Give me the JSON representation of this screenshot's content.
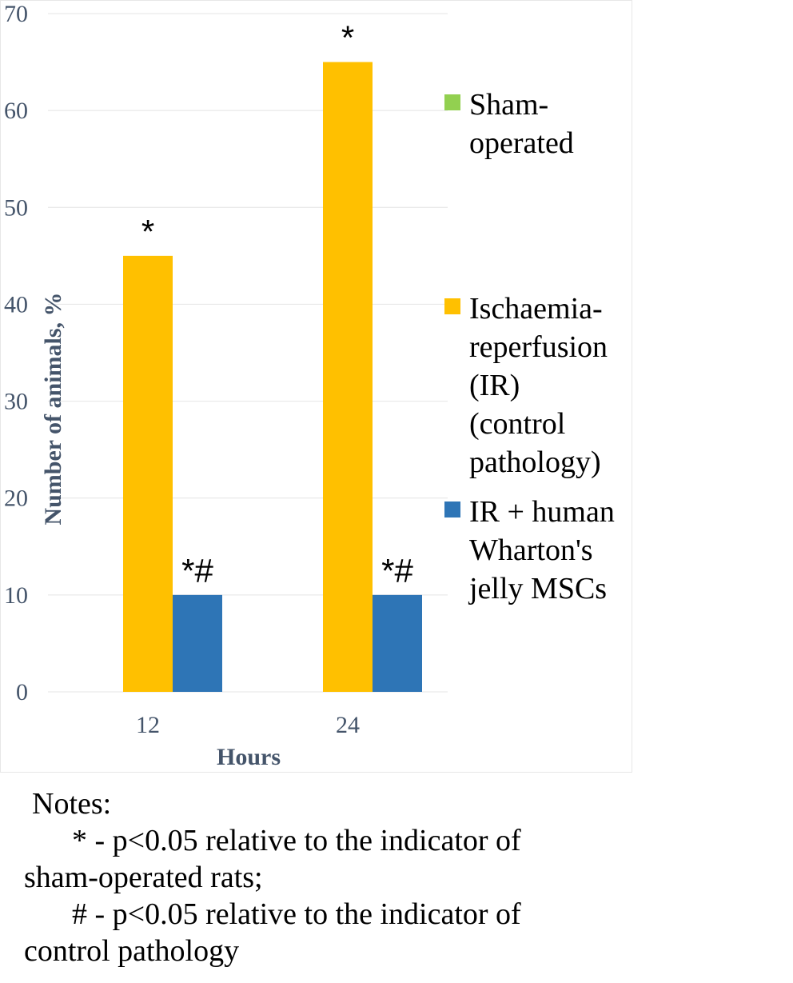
{
  "chart_data": {
    "type": "bar",
    "categories": [
      "12",
      "24"
    ],
    "series": [
      {
        "name": "Sham-operated",
        "values": [
          0,
          0
        ],
        "color": "#92d050"
      },
      {
        "name": "Ischaemia-reperfusion (IR) (control pathology)",
        "values": [
          45,
          65
        ],
        "color": "#ffc000"
      },
      {
        "name": "IR + human Wharton's jelly MSCs",
        "values": [
          10,
          10
        ],
        "color": "#2e75b6"
      }
    ],
    "title": "",
    "xlabel": "Hours",
    "ylabel": "Number of animals, %",
    "ylim": [
      0,
      70
    ],
    "yticks": [
      0,
      10,
      20,
      30,
      40,
      50,
      60,
      70
    ],
    "grid": true,
    "legend_position": "right",
    "legend": [
      {
        "lines": [
          "Sham-",
          "operated"
        ],
        "color": "#92d050"
      },
      {
        "lines": [
          "Ischaemia-",
          "reperfusion",
          "(IR)",
          "(control",
          "pathology)"
        ],
        "color": "#ffc000"
      },
      {
        "lines": [
          "IR + human",
          "Wharton's",
          "jelly MSCs"
        ],
        "color": "#2e75b6"
      }
    ],
    "annotations": [
      {
        "category": "12",
        "series": 1,
        "text": "*"
      },
      {
        "category": "12",
        "series": 2,
        "text": "*#"
      },
      {
        "category": "24",
        "series": 1,
        "text": "*"
      },
      {
        "category": "24",
        "series": 2,
        "text": "*#"
      }
    ]
  },
  "notes": {
    "heading": "Notes:",
    "line1": "* - p<0.05 relative to the indicator of",
    "line2": "sham-operated rats;",
    "line3": "# - p<0.05 relative to the indicator of",
    "line4": "control pathology"
  }
}
